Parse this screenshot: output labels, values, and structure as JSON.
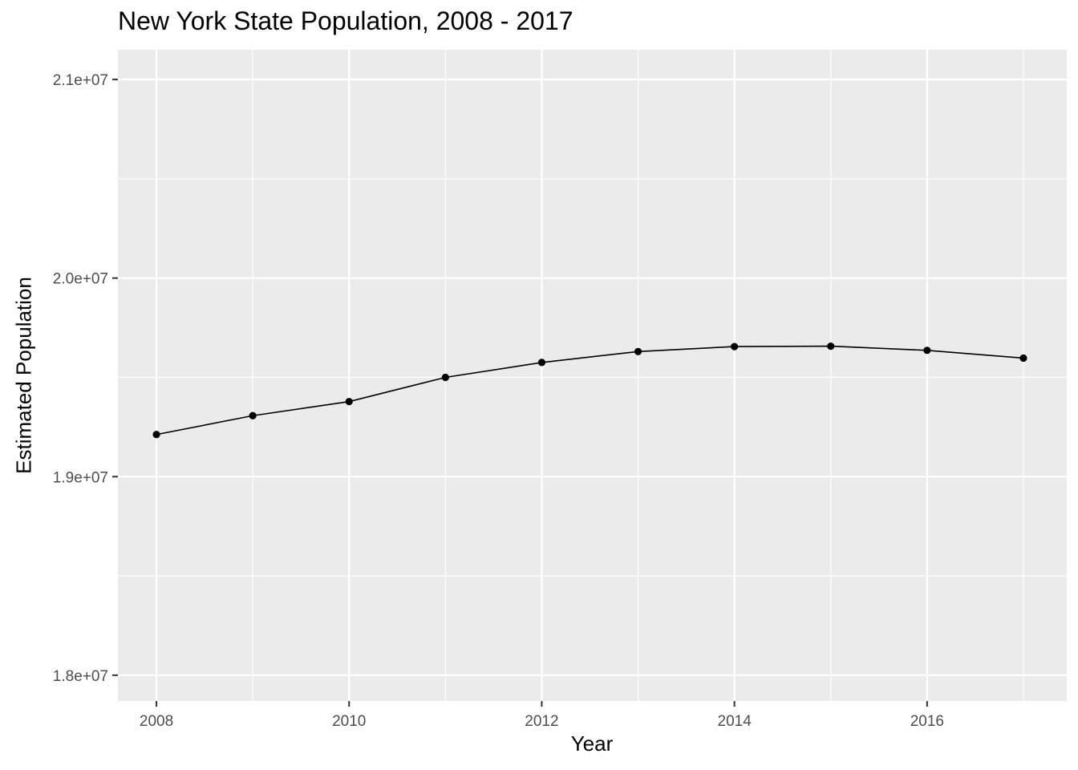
{
  "chart_data": {
    "type": "line",
    "title": "New York State Population, 2008 - 2017",
    "xlabel": "Year",
    "ylabel": "Estimated Population",
    "xlim": [
      2007.6,
      2017.45
    ],
    "ylim": [
      17870000,
      21150000
    ],
    "x_ticks": [
      2008,
      2010,
      2012,
      2014,
      2016
    ],
    "x_tick_labels": [
      "2008",
      "2010",
      "2012",
      "2014",
      "2016"
    ],
    "y_ticks": [
      18000000,
      19000000,
      20000000,
      21000000
    ],
    "y_tick_labels": [
      "1.8e+07",
      "1.9e+07",
      "2.0e+07",
      "2.1e+07"
    ],
    "grid": true,
    "legend": "none",
    "x": [
      2008,
      2009,
      2010,
      2011,
      2012,
      2013,
      2014,
      2015,
      2016,
      2017
    ],
    "series": [
      {
        "values": [
          19212000,
          19307000,
          19378000,
          19500000,
          19575000,
          19630000,
          19655000,
          19657000,
          19636000,
          19597000
        ]
      }
    ],
    "colors": {
      "panel_background": "#ebebeb",
      "major_grid": "#ffffff",
      "line": "#000000",
      "point": "#000000",
      "tick_text": "#4d4d4d",
      "tick_mark": "#333333"
    }
  }
}
